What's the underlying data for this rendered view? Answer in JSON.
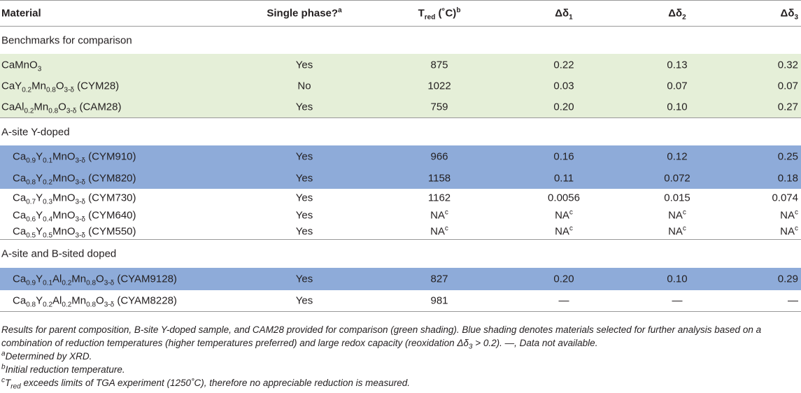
{
  "table": {
    "header": [
      [
        "Material"
      ],
      [
        "Single phase?",
        {
          "sup": "a"
        }
      ],
      [
        "T",
        {
          "sub": "red"
        },
        " (˚C)",
        {
          "sup": "b"
        }
      ],
      [
        "Δδ",
        {
          "sub": "1"
        }
      ],
      [
        "Δδ",
        {
          "sub": "2"
        }
      ],
      [
        "Δδ",
        {
          "sub": "3"
        }
      ]
    ],
    "rows": [
      {
        "section": "Benchmarks for comparison"
      },
      {
        "shade": "green",
        "cells": [
          [
            "CaMnO",
            {
              "sub": "3"
            }
          ],
          "Yes",
          "875",
          "0.22",
          "0.13",
          "0.32"
        ]
      },
      {
        "shade": "green",
        "cells": [
          [
            "CaY",
            {
              "sub": "0.2"
            },
            "Mn",
            {
              "sub": "0.8"
            },
            "O",
            {
              "sub": "3-δ"
            },
            " (CYM28)"
          ],
          "No",
          "1022",
          "0.03",
          "0.07",
          "0.07"
        ]
      },
      {
        "shade": "green",
        "cells": [
          [
            "CaAl",
            {
              "sub": "0.2"
            },
            "Mn",
            {
              "sub": "0.8"
            },
            "O",
            {
              "sub": "3-δ"
            },
            " (CAM28)"
          ],
          "Yes",
          "759",
          "0.20",
          "0.10",
          "0.27"
        ]
      },
      {
        "section": "A-site Y-doped"
      },
      {
        "shade": "blue",
        "cells": [
          [
            "Ca",
            {
              "sub": "0.9"
            },
            "Y",
            {
              "sub": "0.1"
            },
            "MnO",
            {
              "sub": "3-δ"
            },
            " (CYM910)"
          ],
          "Yes",
          "966",
          "0.16",
          "0.12",
          "0.25"
        ]
      },
      {
        "shade": "blue",
        "cells": [
          [
            "Ca",
            {
              "sub": "0.8"
            },
            "Y",
            {
              "sub": "0.2"
            },
            "MnO",
            {
              "sub": "3-δ"
            },
            " (CYM820)"
          ],
          "Yes",
          "1158",
          "0.11",
          "0.072",
          "0.18"
        ]
      },
      {
        "cells": [
          [
            "Ca",
            {
              "sub": "0.7"
            },
            "Y",
            {
              "sub": "0.3"
            },
            "MnO",
            {
              "sub": "3-δ"
            },
            " (CYM730)"
          ],
          "Yes",
          "1162",
          "0.0056",
          "0.015",
          "0.074"
        ]
      },
      {
        "cells": [
          [
            "Ca",
            {
              "sub": "0.6"
            },
            "Y",
            {
              "sub": "0.4"
            },
            "MnO",
            {
              "sub": "3-δ"
            },
            " (CYM640)"
          ],
          "Yes",
          [
            "NA",
            {
              "sup": "c"
            }
          ],
          [
            "NA",
            {
              "sup": "c"
            }
          ],
          [
            "NA",
            {
              "sup": "c"
            }
          ],
          [
            "NA",
            {
              "sup": "c"
            }
          ]
        ]
      },
      {
        "cells": [
          [
            "Ca",
            {
              "sub": "0.5"
            },
            "Y",
            {
              "sub": "0.5"
            },
            "MnO",
            {
              "sub": "3-δ"
            },
            " (CYM550)"
          ],
          "Yes",
          [
            "NA",
            {
              "sup": "c"
            }
          ],
          [
            "NA",
            {
              "sup": "c"
            }
          ],
          [
            "NA",
            {
              "sup": "c"
            }
          ],
          [
            "NA",
            {
              "sup": "c"
            }
          ]
        ]
      },
      {
        "section": "A-site and B-sited doped"
      },
      {
        "shade": "blue",
        "cells": [
          [
            "Ca",
            {
              "sub": "0.9"
            },
            "Y",
            {
              "sub": "0.1"
            },
            "Al",
            {
              "sub": "0.2"
            },
            "Mn",
            {
              "sub": "0.8"
            },
            "O",
            {
              "sub": "3-δ"
            },
            " (CYAM9128)"
          ],
          "Yes",
          "827",
          "0.20",
          "0.10",
          "0.29"
        ]
      },
      {
        "cells": [
          [
            "Ca",
            {
              "sub": "0.8"
            },
            "Y",
            {
              "sub": "0.2"
            },
            "Al",
            {
              "sub": "0.2"
            },
            "Mn",
            {
              "sub": "0.8"
            },
            "O",
            {
              "sub": "3-δ"
            },
            " (CYAM8228)"
          ],
          "Yes",
          "981",
          "—",
          "—",
          "—"
        ]
      }
    ]
  },
  "footnotes": [
    [
      "Results for parent composition, B-site Y-doped sample, and CAM28 provided for comparison (green shading). Blue shading denotes materials selected for further analysis based on a combination of reduction temperatures (higher temperatures preferred) and large redox capacity (reoxidation Δδ",
      {
        "sub": "3"
      },
      " > 0.2). —, Data not available."
    ],
    [
      {
        "sup": "a"
      },
      "Determined by XRD."
    ],
    [
      {
        "sup": "b"
      },
      "Initial reduction temperature."
    ],
    [
      {
        "sup": "c"
      },
      "T",
      {
        "sub": "red"
      },
      " exceeds limits of TGA experiment (1250˚C), therefore no appreciable reduction is measured."
    ]
  ]
}
